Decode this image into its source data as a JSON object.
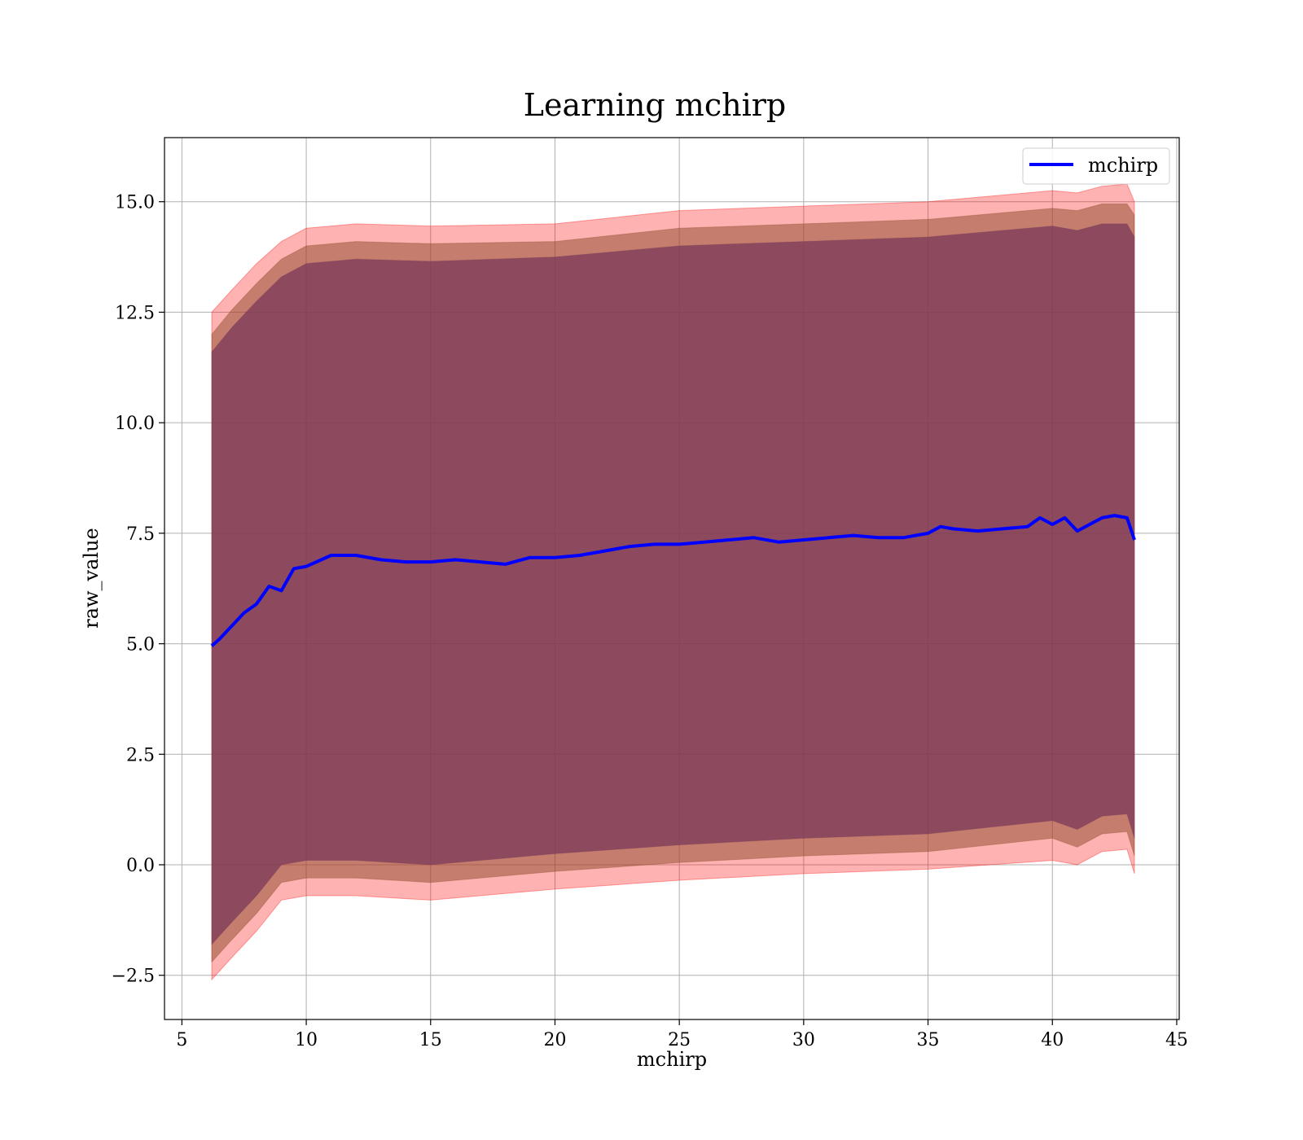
{
  "chart_data": {
    "type": "area",
    "title": "Learning mchirp",
    "xlabel": "mchirp",
    "ylabel": "raw_value",
    "xlim": [
      4.3,
      45.1
    ],
    "ylim": [
      -3.5,
      16.45
    ],
    "xticks": [
      5,
      10,
      15,
      20,
      25,
      30,
      35,
      40,
      45
    ],
    "xtick_labels": [
      "5",
      "10",
      "15",
      "20",
      "25",
      "30",
      "35",
      "40",
      "45"
    ],
    "yticks": [
      -2.5,
      0.0,
      2.5,
      5.0,
      7.5,
      10.0,
      12.5,
      15.0
    ],
    "ytick_labels": [
      "−2.5",
      "0.0",
      "2.5",
      "5.0",
      "7.5",
      "10.0",
      "12.5",
      "15.0"
    ],
    "grid": true,
    "legend": {
      "position": "top-right",
      "entries": [
        "mchirp"
      ]
    },
    "series": [
      {
        "name": "mchirp",
        "style": "line",
        "color": "#0000ff",
        "x": [
          6.2,
          6.5,
          7.0,
          7.5,
          8.0,
          8.5,
          9.0,
          9.5,
          10.0,
          11.0,
          12.0,
          13.0,
          14.0,
          15.0,
          16.0,
          17.0,
          18.0,
          19.0,
          20.0,
          21.0,
          22.0,
          23.0,
          24.0,
          25.0,
          26.0,
          27.0,
          28.0,
          29.0,
          30.0,
          31.0,
          32.0,
          33.0,
          34.0,
          35.0,
          35.5,
          36.0,
          37.0,
          38.0,
          39.0,
          39.5,
          40.0,
          40.5,
          41.0,
          41.5,
          42.0,
          42.5,
          43.0,
          43.3
        ],
        "y": [
          4.95,
          5.1,
          5.4,
          5.7,
          5.9,
          6.3,
          6.2,
          6.7,
          6.75,
          7.0,
          7.0,
          6.9,
          6.85,
          6.85,
          6.9,
          6.85,
          6.8,
          6.95,
          6.95,
          7.0,
          7.1,
          7.2,
          7.25,
          7.25,
          7.3,
          7.35,
          7.4,
          7.3,
          7.35,
          7.4,
          7.45,
          7.4,
          7.4,
          7.5,
          7.65,
          7.6,
          7.55,
          7.6,
          7.65,
          7.85,
          7.7,
          7.85,
          7.55,
          7.7,
          7.85,
          7.9,
          7.85,
          7.35
        ]
      },
      {
        "name": "",
        "style": "band",
        "color": "#ff0000",
        "opacity": 0.3,
        "x": [
          6.2,
          7.0,
          8.0,
          9.0,
          10.0,
          12.0,
          15.0,
          20.0,
          25.0,
          30.0,
          35.0,
          40.0,
          41.0,
          42.0,
          43.0,
          43.3
        ],
        "upper": [
          12.5,
          13.0,
          13.6,
          14.1,
          14.4,
          14.5,
          14.45,
          14.5,
          14.8,
          14.9,
          15.0,
          15.25,
          15.2,
          15.35,
          15.4,
          15.0
        ],
        "lower": [
          -2.6,
          -2.1,
          -1.5,
          -0.8,
          -0.7,
          -0.7,
          -0.8,
          -0.55,
          -0.35,
          -0.2,
          -0.1,
          0.1,
          0.0,
          0.3,
          0.35,
          -0.2
        ]
      },
      {
        "name": "",
        "style": "band",
        "color": "#8b4a2a",
        "opacity": 0.5,
        "x": [
          6.2,
          7.0,
          8.0,
          9.0,
          10.0,
          12.0,
          15.0,
          20.0,
          25.0,
          30.0,
          35.0,
          40.0,
          41.0,
          42.0,
          43.0,
          43.3
        ],
        "upper": [
          12.0,
          12.55,
          13.15,
          13.7,
          14.0,
          14.1,
          14.05,
          14.1,
          14.4,
          14.5,
          14.6,
          14.85,
          14.8,
          14.95,
          14.95,
          14.7
        ],
        "lower": [
          -2.2,
          -1.7,
          -1.1,
          -0.4,
          -0.3,
          -0.3,
          -0.4,
          -0.15,
          0.05,
          0.2,
          0.3,
          0.6,
          0.4,
          0.7,
          0.75,
          0.2
        ]
      },
      {
        "name": "",
        "style": "band",
        "color": "#7a3a5a",
        "opacity": 0.75,
        "x": [
          6.2,
          7.0,
          8.0,
          9.0,
          10.0,
          12.0,
          15.0,
          20.0,
          25.0,
          30.0,
          35.0,
          40.0,
          41.0,
          42.0,
          43.0,
          43.3
        ],
        "upper": [
          11.6,
          12.15,
          12.75,
          13.3,
          13.6,
          13.7,
          13.65,
          13.75,
          14.0,
          14.1,
          14.2,
          14.45,
          14.35,
          14.5,
          14.5,
          14.2
        ],
        "lower": [
          -1.8,
          -1.3,
          -0.7,
          0.0,
          0.1,
          0.1,
          0.0,
          0.25,
          0.45,
          0.6,
          0.7,
          1.0,
          0.8,
          1.1,
          1.15,
          0.6
        ]
      }
    ]
  }
}
